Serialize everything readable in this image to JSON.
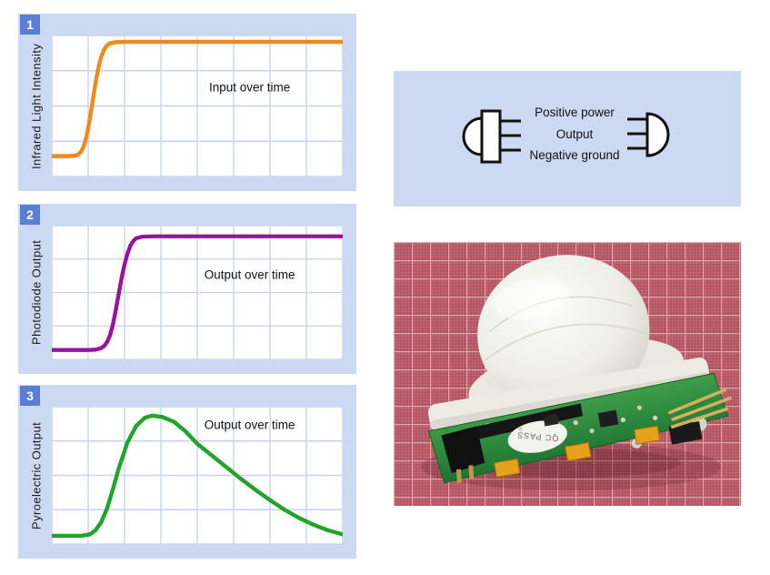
{
  "colors": {
    "panel_bg": "#ccd9f2",
    "badge_bg": "#5b7ed4",
    "badge_text": "#ffffff",
    "plot_bg": "#ffffff",
    "gridline": "#c7d3ee",
    "text": "#1a1a1a",
    "symbol_stroke": "#111111",
    "mat_red": "#b2505e",
    "pcb_green": "#2e8f3c",
    "dome_white": "#f2f2ec",
    "pin_gold": "#d6b05e"
  },
  "charts": [
    {
      "badge": "1",
      "y_label": "Infrared Light Intensity",
      "annotation": "Input over time"
    },
    {
      "badge": "2",
      "y_label": "Photodiode Output",
      "annotation": "Output over time"
    },
    {
      "badge": "3",
      "y_label": "Pyroelectric Output",
      "annotation": "Output over time"
    }
  ],
  "chart_data": [
    {
      "type": "line",
      "ylabel": "Infrared Light Intensity",
      "annotation": "Input over time",
      "color": "#f18a1d",
      "shape": "step-up sigmoid: low flat baseline, sharp rise at ~14% of time axis, high flat plateau",
      "grid": true,
      "axis_tick_labels": false,
      "x": [
        0,
        0.06,
        0.08,
        0.09,
        0.1,
        0.11,
        0.12,
        0.13,
        0.14,
        0.15,
        0.16,
        0.17,
        0.18,
        0.19,
        0.2,
        0.22,
        0.26,
        0.35,
        0.6,
        1.0
      ],
      "y": [
        0.145,
        0.145,
        0.148,
        0.155,
        0.175,
        0.215,
        0.29,
        0.4,
        0.53,
        0.66,
        0.77,
        0.85,
        0.9,
        0.93,
        0.945,
        0.953,
        0.955,
        0.955,
        0.955,
        0.955
      ]
    },
    {
      "type": "line",
      "ylabel": "Photodiode Output",
      "annotation": "Output over time",
      "color": "#99119c",
      "shape": "step-up sigmoid: low flat baseline, sharp rise at ~23% of time axis, high flat plateau",
      "grid": true,
      "axis_tick_labels": false,
      "x": [
        0,
        0.13,
        0.15,
        0.17,
        0.18,
        0.19,
        0.2,
        0.21,
        0.22,
        0.23,
        0.24,
        0.25,
        0.26,
        0.27,
        0.28,
        0.29,
        0.31,
        0.35,
        0.5,
        1.0
      ],
      "y": [
        0.07,
        0.07,
        0.073,
        0.085,
        0.1,
        0.13,
        0.18,
        0.26,
        0.37,
        0.49,
        0.61,
        0.71,
        0.79,
        0.85,
        0.885,
        0.905,
        0.917,
        0.92,
        0.92,
        0.92
      ]
    },
    {
      "type": "line",
      "ylabel": "Pyroelectric Output",
      "annotation": "Output over time",
      "color": "#22a32a",
      "shape": "pulse: flat baseline, sharp rise, peak at ~35% of time axis, slow decay back to baseline",
      "grid": true,
      "axis_tick_labels": false,
      "x": [
        0,
        0.1,
        0.13,
        0.15,
        0.17,
        0.19,
        0.21,
        0.23,
        0.26,
        0.29,
        0.32,
        0.345,
        0.38,
        0.42,
        0.46,
        0.5,
        0.55,
        0.6,
        0.65,
        0.7,
        0.75,
        0.8,
        0.85,
        0.9,
        0.95,
        1.0
      ],
      "y": [
        0.06,
        0.06,
        0.07,
        0.1,
        0.16,
        0.26,
        0.4,
        0.55,
        0.74,
        0.86,
        0.92,
        0.935,
        0.925,
        0.89,
        0.82,
        0.73,
        0.645,
        0.56,
        0.475,
        0.395,
        0.32,
        0.25,
        0.19,
        0.14,
        0.1,
        0.07
      ]
    }
  ],
  "pinout": {
    "labels": [
      "Positive power",
      "Output",
      "Negative ground"
    ]
  },
  "photo": {
    "sticker_text": "QC PASS"
  }
}
